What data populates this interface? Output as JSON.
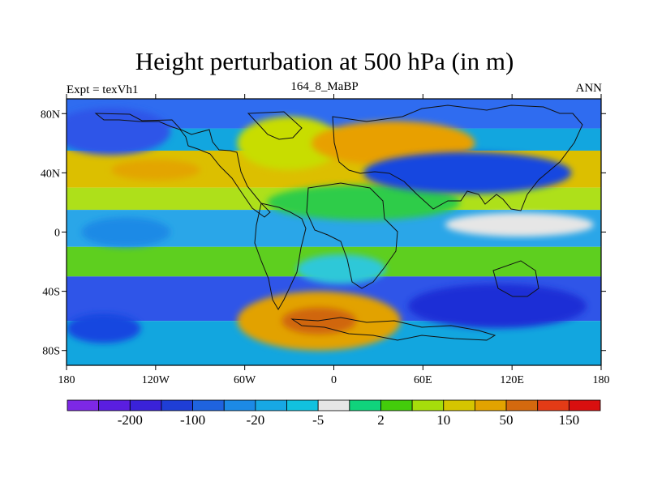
{
  "title": "Height perturbation at 500 hPa (in m)",
  "subtitle_left": "Expt = texVh1",
  "subtitle_center": "164_8_MaBP",
  "subtitle_right": "ANN",
  "map": {
    "projection": "cylindrical equidistant",
    "lon_range": [
      -180,
      180
    ],
    "lat_range": [
      -90,
      90
    ],
    "lon_ticks": [
      {
        "value": -180,
        "label": "180"
      },
      {
        "value": -120,
        "label": "120W"
      },
      {
        "value": -60,
        "label": "60W"
      },
      {
        "value": 0,
        "label": "0"
      },
      {
        "value": 60,
        "label": "60E"
      },
      {
        "value": 120,
        "label": "120E"
      },
      {
        "value": 180,
        "label": "180"
      }
    ],
    "lat_ticks": [
      {
        "value": 80,
        "label": "80N"
      },
      {
        "value": 40,
        "label": "40N"
      },
      {
        "value": 0,
        "label": "0"
      },
      {
        "value": -40,
        "label": "40S"
      },
      {
        "value": -80,
        "label": "80S"
      }
    ],
    "bands": [
      {
        "lat_top": 90,
        "lat_bot": 70,
        "color": "#2f6cf0"
      },
      {
        "lat_top": 70,
        "lat_bot": 55,
        "color": "#12a6df"
      },
      {
        "lat_top": 55,
        "lat_bot": 30,
        "color": "#dcbf00"
      },
      {
        "lat_top": 30,
        "lat_bot": 15,
        "color": "#aee01a"
      },
      {
        "lat_top": 15,
        "lat_bot": -10,
        "color": "#2aa6e8"
      },
      {
        "lat_top": -10,
        "lat_bot": -30,
        "color": "#5ecf1f"
      },
      {
        "lat_top": -30,
        "lat_bot": -60,
        "color": "#2f55e8"
      },
      {
        "lat_top": -60,
        "lat_bot": -90,
        "color": "#12a6df"
      }
    ],
    "blobs": [
      {
        "lon": -150,
        "lat": 68,
        "rlon": 40,
        "rlat": 16,
        "color": "#2f55e8"
      },
      {
        "lon": -120,
        "lat": 42,
        "rlon": 30,
        "rlat": 7,
        "color": "#e3a500"
      },
      {
        "lon": -30,
        "lat": 60,
        "rlon": 35,
        "rlat": 18,
        "color": "#c8dd00"
      },
      {
        "lon": 40,
        "lat": 60,
        "rlon": 55,
        "rlat": 15,
        "color": "#e8a000"
      },
      {
        "lon": 20,
        "lat": 20,
        "rlon": 65,
        "rlat": 12,
        "color": "#2fcc4a"
      },
      {
        "lon": 90,
        "lat": 40,
        "rlon": 70,
        "rlat": 14,
        "color": "#1347e0"
      },
      {
        "lon": 125,
        "lat": 5,
        "rlon": 50,
        "rlat": 8,
        "color": "#e6e6e6"
      },
      {
        "lon": -140,
        "lat": 0,
        "rlon": 30,
        "rlat": 10,
        "color": "#1c8ae6"
      },
      {
        "lon": -10,
        "lat": -60,
        "rlon": 55,
        "rlat": 20,
        "color": "#e2a200"
      },
      {
        "lon": -10,
        "lat": -60,
        "rlon": 25,
        "rlat": 9,
        "color": "#d0660c"
      },
      {
        "lon": 110,
        "lat": -50,
        "rlon": 60,
        "rlat": 15,
        "color": "#1a2ed6"
      },
      {
        "lon": -155,
        "lat": -65,
        "rlon": 25,
        "rlat": 10,
        "color": "#1347e0"
      },
      {
        "lon": 5,
        "lat": -25,
        "rlon": 30,
        "rlat": 10,
        "color": "#2ec8d8"
      }
    ]
  },
  "colorbar": {
    "colors": [
      "#7d28e6",
      "#5a1ee0",
      "#3a22d9",
      "#1f3ed6",
      "#1f63df",
      "#1c8ae6",
      "#17a8e4",
      "#11c1df",
      "#e6e6e6",
      "#10d37c",
      "#43cc0b",
      "#a6dd0b",
      "#d5c500",
      "#e2a300",
      "#d4690e",
      "#e33b16",
      "#d90f0f"
    ],
    "labels": [
      {
        "after_index": 1,
        "text": "-200"
      },
      {
        "after_index": 3,
        "text": "-100"
      },
      {
        "after_index": 5,
        "text": "-20"
      },
      {
        "after_index": 7,
        "text": "-5"
      },
      {
        "after_index": 9,
        "text": "2"
      },
      {
        "after_index": 11,
        "text": "10"
      },
      {
        "after_index": 13,
        "text": "50"
      },
      {
        "after_index": 15,
        "text": "150"
      }
    ]
  }
}
